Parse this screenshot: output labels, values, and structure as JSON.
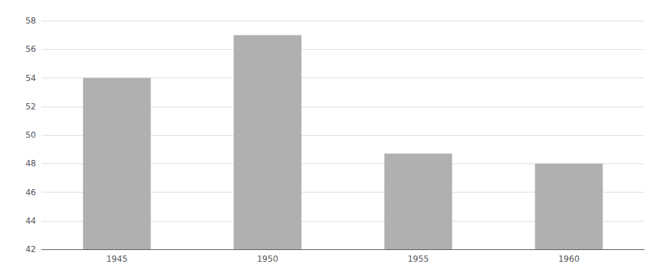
{
  "chart_data": {
    "type": "bar",
    "categories": [
      "1945",
      "1950",
      "1955",
      "1960"
    ],
    "values": [
      54.0,
      57.0,
      48.7,
      48.0
    ],
    "color": "#b0b0b0",
    "ylim": [
      42,
      58
    ],
    "yticks": [
      42,
      44,
      46,
      48,
      50,
      52,
      54,
      56,
      58
    ],
    "grid": true
  }
}
